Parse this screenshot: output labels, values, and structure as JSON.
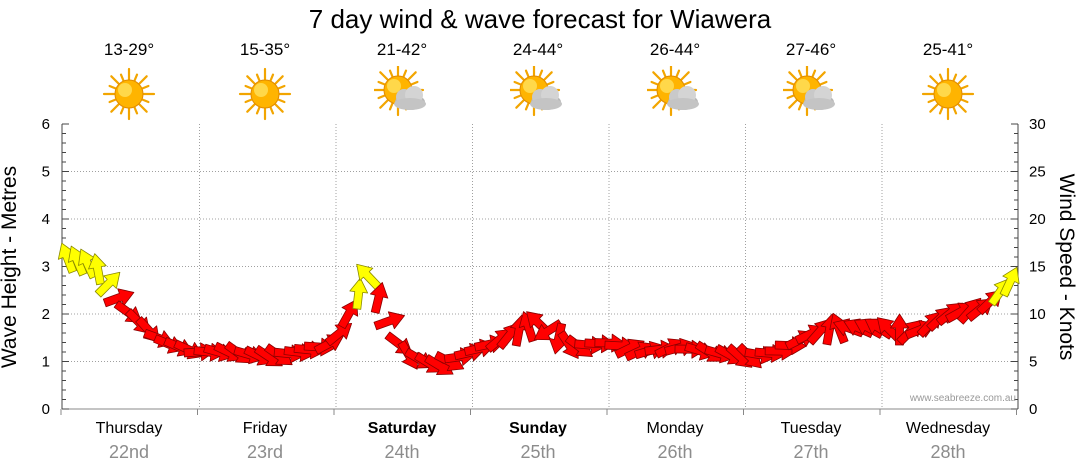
{
  "title": "7 day wind & wave forecast for Wiawera",
  "watermark": "www.seabreeze.com.au",
  "colors": {
    "arrow_strong": "#ff0000",
    "arrow_light": "#ffff00",
    "axis": "#444444",
    "grid": "#a0a0a0",
    "date_text": "#8c8c8c"
  },
  "days": [
    {
      "name": "Thursday",
      "date": "22nd",
      "bold": false,
      "temp": "13-29°",
      "icon": "sun-icon"
    },
    {
      "name": "Friday",
      "date": "23rd",
      "bold": false,
      "temp": "15-35°",
      "icon": "sun-icon"
    },
    {
      "name": "Saturday",
      "date": "24th",
      "bold": true,
      "temp": "21-42°",
      "icon": "sun-cloud-icon"
    },
    {
      "name": "Sunday",
      "date": "25th",
      "bold": true,
      "temp": "24-44°",
      "icon": "sun-cloud-icon"
    },
    {
      "name": "Monday",
      "date": "26th",
      "bold": false,
      "temp": "26-44°",
      "icon": "sun-cloud-icon"
    },
    {
      "name": "Tuesday",
      "date": "27th",
      "bold": false,
      "temp": "27-46°",
      "icon": "sun-cloud-icon"
    },
    {
      "name": "Wednesday",
      "date": "28th",
      "bold": false,
      "temp": "25-41°",
      "icon": "sun-icon"
    }
  ],
  "chart_data": {
    "type": "line",
    "ylabel_left": "Wave Height - Metres",
    "ylabel_right": "Wind Speed - Knots",
    "ylim_left": [
      0,
      6
    ],
    "ylim_right": [
      0,
      30
    ],
    "yticks_left": [
      "0",
      "1",
      "2",
      "3",
      "4",
      "5",
      "6"
    ],
    "yticks_right": [
      "0",
      "5",
      "10",
      "15",
      "20",
      "25",
      "30"
    ],
    "grid": true,
    "strong_wind_threshold_knots": 12,
    "series": [
      {
        "x_day_offset": [
          0.0,
          0.25,
          0.5,
          0.75,
          1.0,
          1.25,
          1.5,
          1.75,
          2.0,
          2.25,
          2.5,
          2.75,
          3.0,
          3.25,
          3.5,
          3.75,
          4.0,
          4.25,
          4.5,
          4.75,
          5.0,
          5.25,
          5.5,
          5.75,
          6.0,
          6.25,
          6.5,
          6.75,
          7.0
        ],
        "wind_knots": [
          16,
          15,
          10,
          7,
          6,
          6,
          5.5,
          6,
          7,
          14,
          6,
          4.5,
          6,
          7.5,
          9,
          6.5,
          7,
          6,
          6.5,
          6,
          5.5,
          6,
          8,
          8.5,
          8.5,
          8,
          10,
          10.5,
          14
        ],
        "wind_to_deg": [
          0,
          330,
          135,
          120,
          100,
          110,
          120,
          100,
          70,
          330,
          140,
          120,
          80,
          60,
          300,
          120,
          90,
          70,
          80,
          110,
          130,
          90,
          70,
          300,
          290,
          60,
          50,
          60,
          0
        ]
      }
    ]
  }
}
